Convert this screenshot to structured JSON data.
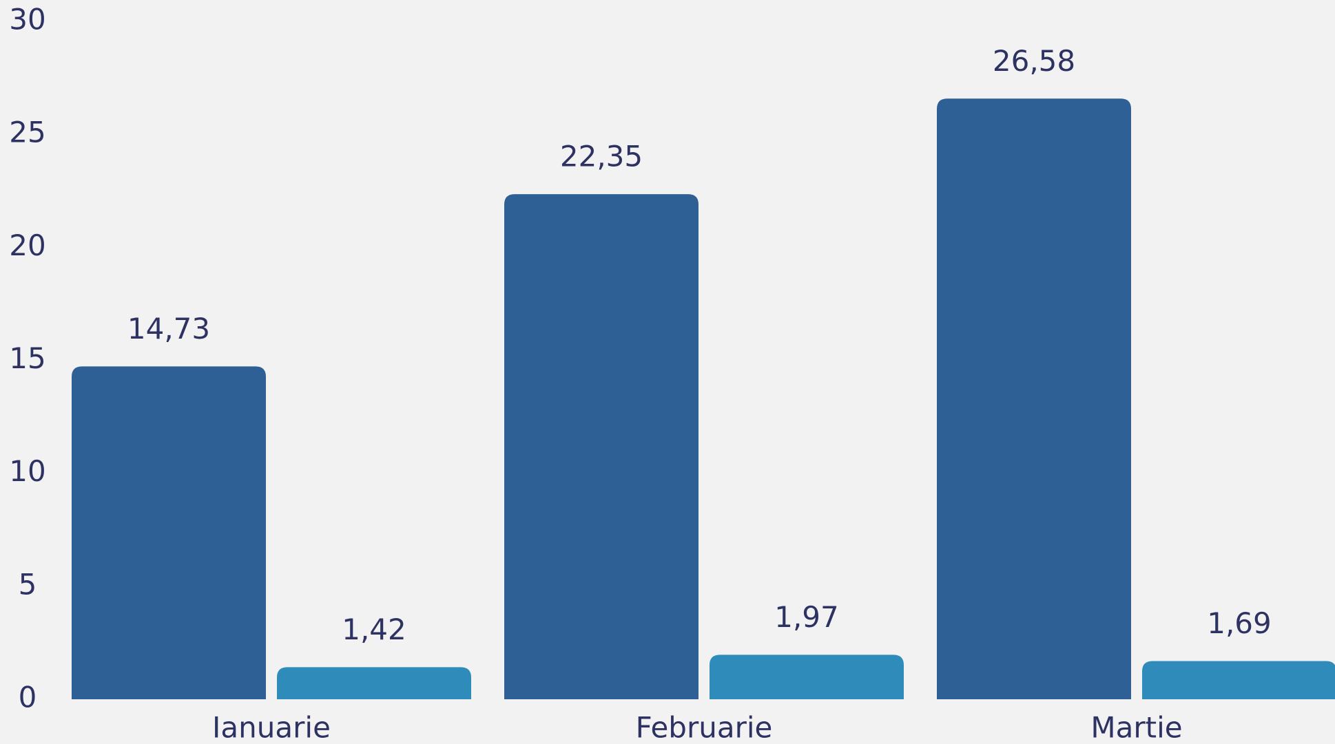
{
  "chart_data": {
    "type": "bar",
    "categories": [
      "Ianuarie",
      "Februarie",
      "Martie"
    ],
    "series": [
      {
        "color": "#2e5f95",
        "values": [
          14.73,
          22.35,
          26.58
        ],
        "value_labels": [
          "14,73",
          "22,35",
          "26,58"
        ]
      },
      {
        "color": "#2e8bba",
        "values": [
          1.42,
          1.97,
          1.69
        ],
        "value_labels": [
          "1,42",
          "1,97",
          "1,69"
        ]
      }
    ],
    "ylim": [
      0,
      30
    ],
    "yticks": [
      0,
      5,
      10,
      15,
      20,
      25,
      30
    ],
    "grid": false
  }
}
